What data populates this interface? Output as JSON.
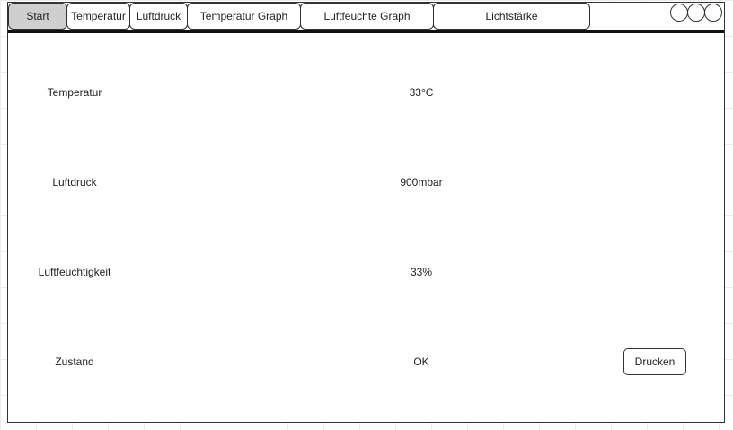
{
  "tabs": [
    {
      "label": "Start",
      "active": true
    },
    {
      "label": "Temperatur",
      "active": false
    },
    {
      "label": "Luftdruck",
      "active": false
    },
    {
      "label": "Temperatur Graph",
      "active": false
    },
    {
      "label": "Luftfeuchte Graph",
      "active": false
    },
    {
      "label": "Lichtstärke",
      "active": false
    }
  ],
  "window_controls": [
    "circle-icon",
    "circle-icon",
    "circle-icon"
  ],
  "readings": [
    {
      "label": "Temperatur",
      "value": "33°C"
    },
    {
      "label": "Luftdruck",
      "value": "900mbar"
    },
    {
      "label": "Luftfeuchtigkeit",
      "value": "33%"
    },
    {
      "label": "Zustand",
      "value": "OK"
    }
  ],
  "actions": {
    "print_label": "Drucken"
  },
  "colors": {
    "active_tab": "#cfcfcf",
    "border": "#333333",
    "tab_underline": "#111111",
    "background": "#ffffff"
  }
}
